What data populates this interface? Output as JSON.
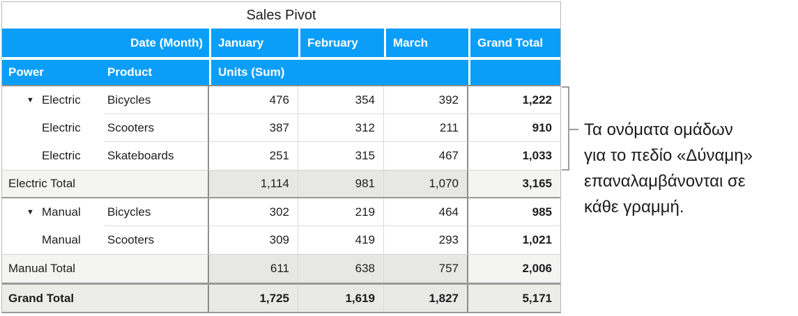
{
  "colors": {
    "header_blue": "#0b9ef8",
    "header_text": "#ffffff",
    "body_text": "#1d1d1f",
    "total_label_bg": "#f4f4f2",
    "total_data_bg": "#e7e7e5",
    "grand_row_bg": "#ecece9",
    "border_dark": "#8c8c8c",
    "border_light": "#d9d9d9",
    "bracket_gray": "#9c9c9c"
  },
  "icons": {
    "disclosure": "▼"
  },
  "table": {
    "title": "Sales Pivot",
    "header_row1": {
      "corner_label": "Date (Month)",
      "months": [
        "January",
        "February",
        "March"
      ],
      "grand": "Grand Total"
    },
    "header_row2": {
      "power": "Power",
      "product": "Product",
      "units": "Units (Sum)"
    },
    "rows": [
      {
        "power": "Electric",
        "product": "Bicycles",
        "jan": "476",
        "feb": "354",
        "mar": "392",
        "total": "1,222"
      },
      {
        "power": "Electric",
        "product": "Scooters",
        "jan": "387",
        "feb": "312",
        "mar": "211",
        "total": "910"
      },
      {
        "power": "Electric",
        "product": "Skateboards",
        "jan": "251",
        "feb": "315",
        "mar": "467",
        "total": "1,033"
      },
      {
        "label": "Electric Total",
        "jan": "1,114",
        "feb": "981",
        "mar": "1,070",
        "total": "3,165"
      },
      {
        "power": "Manual",
        "product": "Bicycles",
        "jan": "302",
        "feb": "219",
        "mar": "464",
        "total": "985"
      },
      {
        "power": "Manual",
        "product": "Scooters",
        "jan": "309",
        "feb": "419",
        "mar": "293",
        "total": "1,021"
      },
      {
        "label": "Manual Total",
        "jan": "611",
        "feb": "638",
        "mar": "757",
        "total": "2,006"
      },
      {
        "label": "Grand Total",
        "jan": "1,725",
        "feb": "1,619",
        "mar": "1,827",
        "total": "5,171"
      }
    ]
  },
  "annotation": {
    "lines": [
      "Τα ονόματα ομάδων",
      "για το πεδίο «Δύναμη»",
      "επαναλαμβάνονται σε",
      "κάθε γραμμή."
    ]
  }
}
